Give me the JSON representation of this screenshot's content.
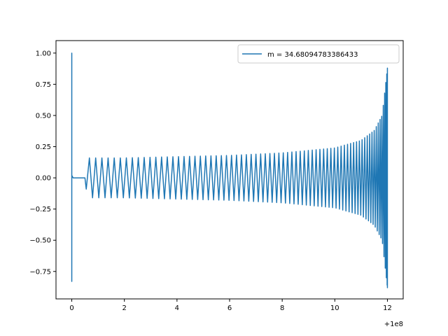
{
  "chart_data": {
    "type": "line",
    "title": "",
    "xlabel": "",
    "ylabel": "",
    "x_offset_label": "+1e8",
    "xlim": [
      -0.6,
      12.6
    ],
    "ylim": [
      -0.97,
      1.1
    ],
    "xticks": [
      0,
      2,
      4,
      6,
      8,
      10,
      12
    ],
    "xtick_labels": [
      "0",
      "2",
      "4",
      "6",
      "8",
      "10",
      "12"
    ],
    "yticks": [
      -0.75,
      -0.5,
      -0.25,
      0.0,
      0.25,
      0.5,
      0.75,
      1.0
    ],
    "ytick_labels": [
      "−0.75",
      "−0.50",
      "−0.25",
      "0.00",
      "0.25",
      "0.50",
      "0.75",
      "1.00"
    ],
    "grid": false,
    "legend_position": "upper right",
    "series": [
      {
        "name": "m = 34.68094783386433",
        "color": "#1f77b4",
        "description_points": {
          "burst": {
            "x": [
              0.0,
              0.0,
              0.0,
              0.0,
              0.0
            ],
            "y": [
              0.6,
              -0.35,
              1.0,
              -0.83,
              0.02
            ]
          },
          "flat": {
            "x": [
              0.05,
              0.5
            ],
            "y": [
              0.0,
              0.0
            ]
          },
          "oscillation_start_x": 0.55,
          "oscillation_end_x": 12.0,
          "amplitude_x": [
            0.55,
            2,
            4,
            6,
            8,
            10,
            11,
            11.5,
            11.8,
            12.0
          ],
          "amplitude_y": [
            0.16,
            0.16,
            0.17,
            0.18,
            0.2,
            0.24,
            0.3,
            0.38,
            0.5,
            0.88
          ]
        }
      }
    ]
  }
}
